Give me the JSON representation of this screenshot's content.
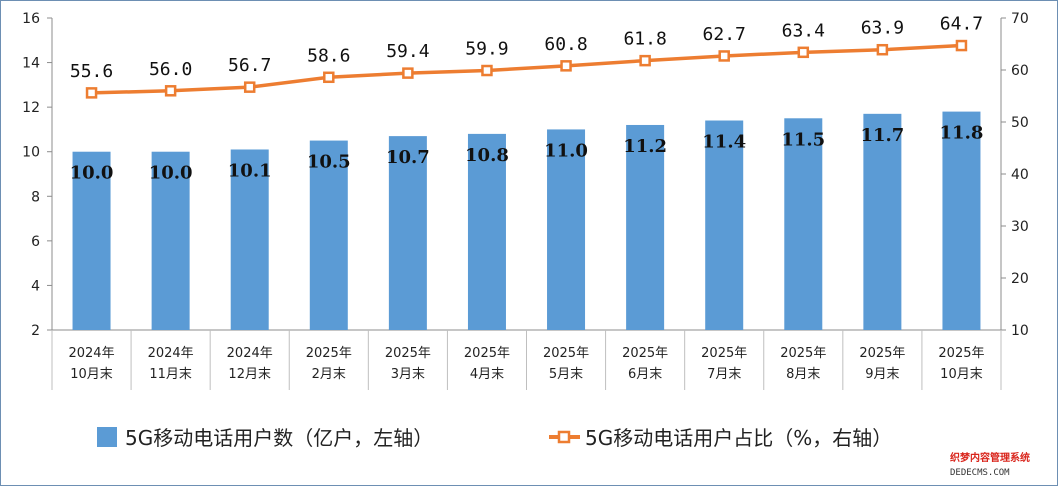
{
  "chart_data": {
    "type": "bar+line",
    "title": "",
    "categories": [
      [
        "2024年",
        "10月末"
      ],
      [
        "2024年",
        "11月末"
      ],
      [
        "2024年",
        "12月末"
      ],
      [
        "2025年",
        "2月末"
      ],
      [
        "2025年",
        "3月末"
      ],
      [
        "2025年",
        "4月末"
      ],
      [
        "2025年",
        "5月末"
      ],
      [
        "2025年",
        "6月末"
      ],
      [
        "2025年",
        "7月末"
      ],
      [
        "2025年",
        "8月末"
      ],
      [
        "2025年",
        "9月末"
      ],
      [
        "2025年",
        "10月末"
      ]
    ],
    "series": [
      {
        "name": "5G移动电话用户数（亿户，左轴）",
        "type": "bar",
        "axis": "left",
        "color": "#5b9bd5",
        "values": [
          10.0,
          10.0,
          10.1,
          10.5,
          10.7,
          10.8,
          11.0,
          11.2,
          11.4,
          11.5,
          11.7,
          11.8
        ],
        "labels": [
          "10.0",
          "10.0",
          "10.1",
          "10.5",
          "10.7",
          "10.8",
          "11.0",
          "11.2",
          "11.4",
          "11.5",
          "11.7",
          "11.8"
        ]
      },
      {
        "name": "5G移动电话用户占比（%，右轴）",
        "type": "line",
        "axis": "right",
        "color": "#ed7d31",
        "values": [
          55.6,
          56.0,
          56.7,
          58.6,
          59.4,
          59.9,
          60.8,
          61.8,
          62.7,
          63.4,
          63.9,
          64.7
        ],
        "labels": [
          "55.6",
          "56.0",
          "56.7",
          "58.6",
          "59.4",
          "59.9",
          "60.8",
          "61.8",
          "62.7",
          "63.4",
          "63.9",
          "64.7"
        ]
      }
    ],
    "left_axis": {
      "min": 2,
      "max": 16,
      "ticks": [
        "2",
        "4",
        "6",
        "8",
        "10",
        "12",
        "14",
        "16"
      ]
    },
    "right_axis": {
      "min": 10,
      "max": 70,
      "ticks": [
        "10",
        "20",
        "30",
        "40",
        "50",
        "60",
        "70"
      ]
    },
    "legend_position": "bottom",
    "grid": false
  },
  "watermark": {
    "line1": "织梦内容管理系统",
    "line2": "DEDECMS.COM"
  }
}
